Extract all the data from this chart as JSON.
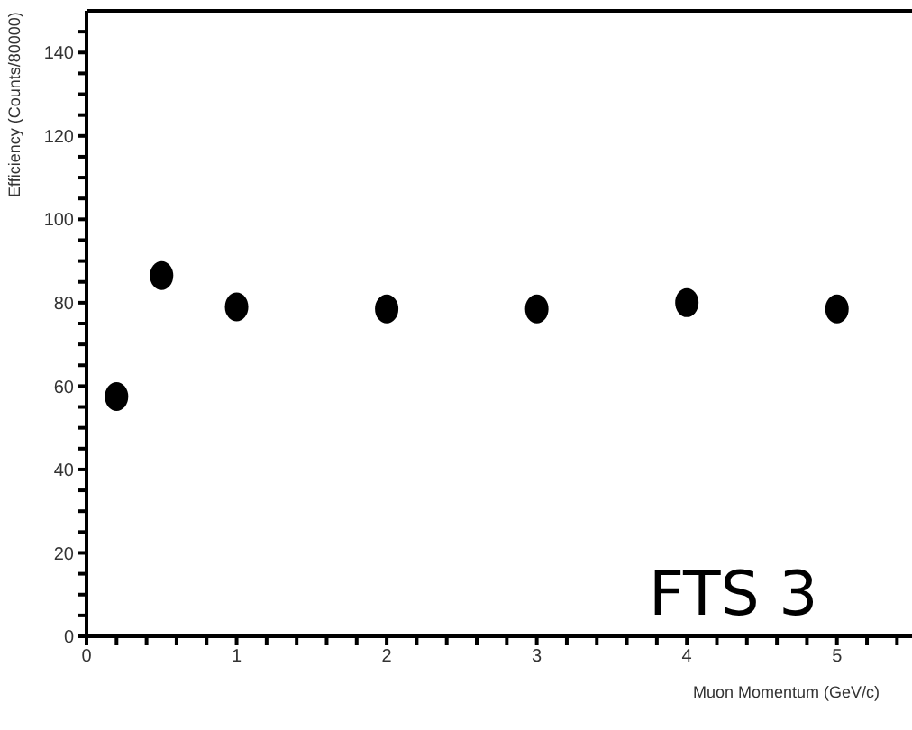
{
  "chart_data": {
    "type": "scatter",
    "xlabel": "Muon Momentum (GeV/c)",
    "ylabel": "Efficiency (Counts/80000)",
    "x": [
      0.2,
      0.5,
      1,
      2,
      3,
      4,
      5
    ],
    "series": [
      {
        "color": "#000000",
        "values": [
          57.5,
          86.5,
          79,
          78.5,
          78.5,
          80,
          78.5
        ]
      }
    ],
    "xlim": [
      0,
      5.5
    ],
    "ylim": [
      0,
      150
    ],
    "xticks": [
      0,
      {
        "value": 0.2,
        "label": null
      },
      {
        "value": 0.4,
        "label": null
      },
      {
        "value": 0.6,
        "label": null
      },
      {
        "value": 0.8,
        "label": null
      },
      1,
      {
        "value": 1.2,
        "label": null
      },
      {
        "value": 1.4,
        "label": null
      },
      {
        "value": 1.6,
        "label": null
      },
      {
        "value": 1.8,
        "label": null
      },
      2,
      {
        "value": 2.2,
        "label": null
      },
      {
        "value": 2.4,
        "label": null
      },
      {
        "value": 2.6,
        "label": null
      },
      {
        "value": 2.8,
        "label": null
      },
      3,
      {
        "value": 3.2,
        "label": null
      },
      {
        "value": 3.4,
        "label": null
      },
      {
        "value": 3.6,
        "label": null
      },
      {
        "value": 3.8,
        "label": null
      },
      4,
      {
        "value": 4.2,
        "label": null
      },
      {
        "value": 4.4,
        "label": null
      },
      {
        "value": 4.6,
        "label": null
      },
      {
        "value": 4.8,
        "label": null
      },
      5,
      {
        "value": 5.2,
        "label": null
      },
      {
        "value": 5.4,
        "label": null
      }
    ],
    "yticks": [
      0,
      {
        "value": 5,
        "label": null
      },
      {
        "value": 10,
        "label": null
      },
      {
        "value": 15,
        "label": null
      },
      20,
      {
        "value": 25,
        "label": null
      },
      {
        "value": 30,
        "label": null
      },
      {
        "value": 35,
        "label": null
      },
      40,
      {
        "value": 45,
        "label": null
      },
      {
        "value": 50,
        "label": null
      },
      {
        "value": 55,
        "label": null
      },
      60,
      {
        "value": 65,
        "label": null
      },
      {
        "value": 70,
        "label": null
      },
      {
        "value": 75,
        "label": null
      },
      80,
      {
        "value": 85,
        "label": null
      },
      {
        "value": 90,
        "label": null
      },
      {
        "value": 95,
        "label": null
      },
      100,
      {
        "value": 105,
        "label": null
      },
      {
        "value": 110,
        "label": null
      },
      {
        "value": 115,
        "label": null
      },
      120,
      {
        "value": 125,
        "label": null
      },
      {
        "value": 130,
        "label": null
      },
      {
        "value": 135,
        "label": null
      },
      140,
      {
        "value": 145,
        "label": null
      }
    ],
    "marker": "circle",
    "annotations": [
      "FTS 3"
    ]
  }
}
